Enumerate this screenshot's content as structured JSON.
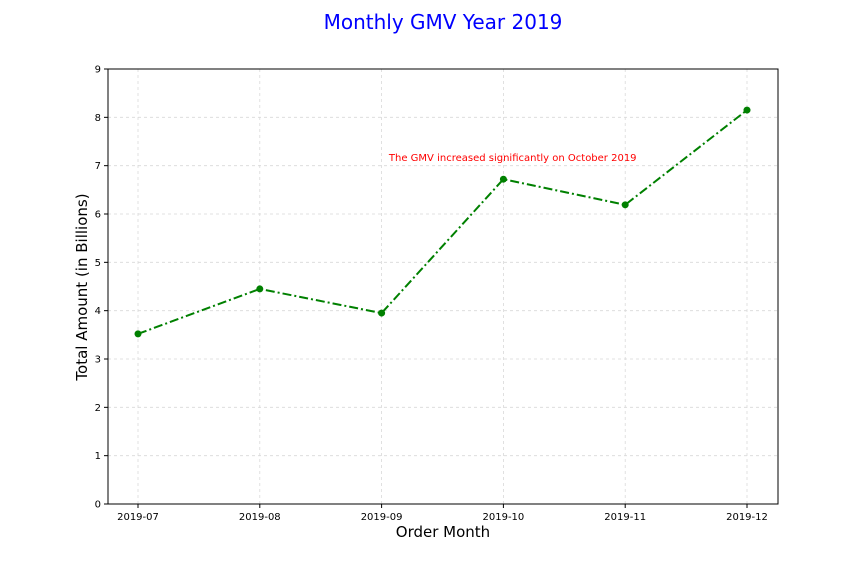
{
  "chart_data": {
    "type": "line",
    "title": "Monthly GMV Year 2019",
    "xlabel": "Order Month",
    "ylabel": "Total Amount (in Billions)",
    "categories": [
      "2019-07",
      "2019-08",
      "2019-09",
      "2019-10",
      "2019-11",
      "2019-12"
    ],
    "series": [
      {
        "values": [
          3.52,
          4.45,
          3.95,
          6.72,
          6.19,
          8.15
        ]
      }
    ],
    "ylim": [
      0,
      9
    ],
    "yticks": [
      "0",
      "1",
      "2",
      "3",
      "4",
      "5",
      "6",
      "7",
      "8",
      "9"
    ],
    "grid": true,
    "annotation": {
      "text": "The GMV increased significantly on October 2019",
      "category": "2019-09",
      "x_offset": 0.06,
      "y": 7.1
    }
  },
  "colors": {
    "title": "#0000ff",
    "line": "#008000",
    "annotation": "#ff0000",
    "grid": "#d9d9d9"
  }
}
